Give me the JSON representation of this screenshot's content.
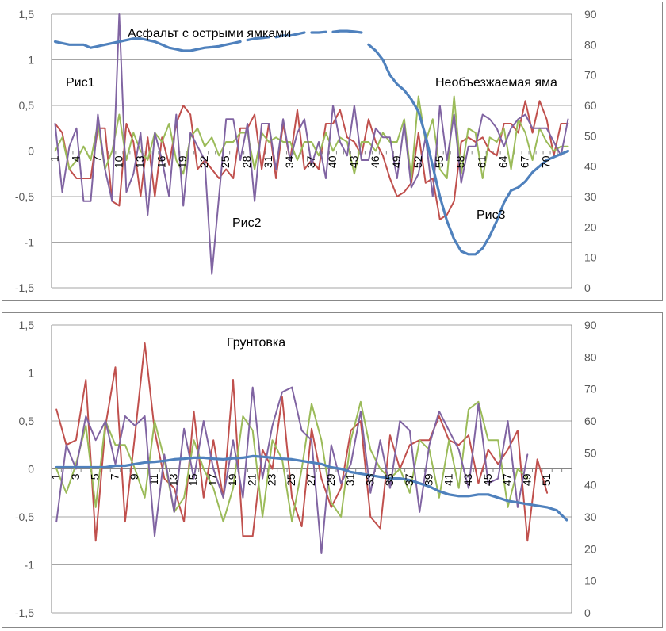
{
  "charts": {
    "top": {
      "type": "line",
      "title": "",
      "annotations": [
        "Асфальт с острыми ямками",
        "Рис1",
        "Необъезжаемая яма",
        "Рис2",
        "Рис3"
      ],
      "y_left": {
        "min": -1.5,
        "max": 1.5,
        "ticks": [
          -1.5,
          -1,
          -0.5,
          0,
          0.5,
          1,
          1.5
        ],
        "labels": [
          "-1,5",
          "-1",
          "-0,5",
          "0",
          "0,5",
          "1",
          "1,5"
        ]
      },
      "y_right": {
        "min": 0,
        "max": 90,
        "ticks": [
          0,
          10,
          20,
          30,
          40,
          50,
          60,
          70,
          80,
          90
        ],
        "labels": [
          "0",
          "10",
          "20",
          "30",
          "40",
          "50",
          "60",
          "70",
          "80",
          "90"
        ]
      },
      "x_count": 73,
      "x_labels": [
        "1",
        "4",
        "7",
        "10",
        "13",
        "16",
        "19",
        "22",
        "25",
        "28",
        "31",
        "34",
        "37",
        "40",
        "43",
        "46",
        "49",
        "52",
        "55",
        "58",
        "61",
        "64",
        "67",
        "70"
      ],
      "x_label_step": 3,
      "grid": "horizontal",
      "series": [
        {
          "color": "#c0504d",
          "axis": "left",
          "values": [
            0.3,
            0.2,
            -0.2,
            -0.3,
            -0.3,
            -0.3,
            0.25,
            0.25,
            -0.55,
            -0.6,
            0.3,
            0.1,
            -0.5,
            0.15,
            -0.5,
            0.15,
            -0.15,
            0.3,
            0.5,
            0.4,
            -0.2,
            -0.1,
            -0.2,
            -0.3,
            -0.2,
            -0.3,
            0.25,
            0.25,
            0.4,
            -0.2,
            0.3,
            -0.3,
            0.3,
            -0.1,
            0.45,
            -0.2,
            -0.1,
            -0.2,
            0.3,
            0.3,
            0.45,
            0.15,
            0.1,
            -0.05,
            0.35,
            0.1,
            -0.05,
            -0.3,
            -0.5,
            -0.45,
            -0.35,
            0.2,
            -0.35,
            -0.3,
            -0.75,
            -0.7,
            -0.55,
            0.1,
            0.15,
            0.1,
            0.15,
            0.0,
            -0.05,
            0.3,
            0.3,
            0.2,
            0.55,
            0.2,
            0.55,
            0.35,
            -0.05,
            0.3,
            0.3
          ]
        },
        {
          "color": "#9bbb59",
          "axis": "left",
          "values": [
            0.0,
            0.15,
            -0.2,
            -0.1,
            0.05,
            -0.1,
            0.3,
            -0.2,
            0.0,
            0.4,
            -0.1,
            0.2,
            0.0,
            -0.1,
            0.2,
            0.1,
            0.3,
            -0.1,
            -0.25,
            0.15,
            0.25,
            0.05,
            0.15,
            -0.05,
            0.1,
            0.1,
            0.2,
            0.2,
            -0.2,
            0.2,
            0.1,
            0.15,
            0.1,
            0.1,
            -0.1,
            0.1,
            0.1,
            -0.05,
            0.2,
            0.0,
            0.15,
            0.1,
            -0.25,
            0.1,
            0.1,
            0.0,
            0.2,
            0.1,
            0.1,
            0.35,
            -0.3,
            0.6,
            0.1,
            0.35,
            -0.2,
            -0.3,
            0.6,
            -0.25,
            0.25,
            0.2,
            -0.3,
            0.15,
            0.1,
            0.25,
            -0.2,
            0.35,
            0.2,
            -0.1,
            0.25,
            0.1,
            0.0,
            0.05,
            0.05
          ]
        },
        {
          "color": "#8064a2",
          "axis": "left",
          "values": [
            0.3,
            -0.45,
            0.05,
            0.25,
            -0.55,
            -0.55,
            0.4,
            -0.2,
            -0.55,
            1.5,
            -0.45,
            -0.25,
            0.2,
            -0.7,
            0.2,
            -0.1,
            -0.5,
            0.4,
            -0.6,
            0.2,
            0.05,
            -0.1,
            -1.35,
            -0.5,
            0.35,
            0.35,
            -0.1,
            0.3,
            -0.55,
            0.3,
            0.3,
            -0.2,
            0.35,
            -0.1,
            0.2,
            0.35,
            -0.15,
            0.1,
            -0.3,
            0.5,
            0.1,
            -0.05,
            0.5,
            -0.1,
            -0.1,
            0.25,
            0.15,
            0.15,
            -0.3,
            0.3,
            -0.4,
            -0.25,
            0.15,
            -0.5,
            0.5,
            -0.1,
            0.4,
            -0.35,
            0.05,
            0.05,
            0.4,
            0.35,
            0.25,
            0.05,
            0.25,
            0.35,
            0.4,
            0.25,
            0.25,
            0.25,
            0.1,
            -0.05,
            0.35
          ]
        },
        {
          "color": "#4f81bd",
          "axis": "right",
          "thick": true,
          "gaps": [
            [
              26,
              27
            ],
            [
              30,
              31
            ],
            [
              35,
              36
            ],
            [
              38,
              39
            ],
            [
              43,
              44
            ]
          ],
          "values": [
            81,
            80.5,
            80,
            80,
            80,
            79,
            79.5,
            80,
            80.5,
            81,
            81.5,
            82,
            82,
            81.5,
            81,
            80,
            79,
            78.5,
            78,
            78,
            78.5,
            79,
            79.2,
            79.5,
            80,
            80.5,
            81,
            81.5,
            82,
            82.2,
            82.5,
            82.5,
            83,
            83,
            83.5,
            84,
            84,
            84,
            84.2,
            84.2,
            84.5,
            84.5,
            84.3,
            84,
            80,
            78,
            75,
            70,
            67,
            65,
            62,
            58,
            50,
            40,
            30,
            22,
            16,
            12,
            11,
            11,
            13,
            17,
            22,
            28,
            32,
            33,
            35,
            38,
            40,
            42,
            43,
            44,
            45
          ]
        }
      ]
    },
    "bottom": {
      "type": "line",
      "title": "",
      "annotations": [
        "Грунтовка"
      ],
      "y_left": {
        "min": -1.5,
        "max": 1.5,
        "ticks": [
          -1.5,
          -1,
          -0.5,
          0,
          0.5,
          1,
          1.5
        ],
        "labels": [
          "-1,5",
          "-1",
          "-0,5",
          "0",
          "0,5",
          "1",
          "1,5"
        ]
      },
      "y_right": {
        "min": 0,
        "max": 90,
        "ticks": [
          0,
          10,
          20,
          30,
          40,
          50,
          60,
          70,
          80,
          90
        ],
        "labels": [
          "0",
          "10",
          "20",
          "30",
          "40",
          "50",
          "60",
          "70",
          "80",
          "90"
        ]
      },
      "x_count": 53,
      "x_labels": [
        "1",
        "3",
        "5",
        "7",
        "9",
        "11",
        "13",
        "15",
        "17",
        "19",
        "21",
        "23",
        "25",
        "27",
        "29",
        "31",
        "33",
        "35",
        "37",
        "39",
        "41",
        "43",
        "45",
        "47",
        "49",
        "51"
      ],
      "x_label_step": 2,
      "grid": "horizontal",
      "series": [
        {
          "color": "#c0504d",
          "axis": "left",
          "values": [
            0.62,
            0.25,
            0.3,
            0.93,
            -0.75,
            0.45,
            1.06,
            -0.55,
            0.35,
            1.31,
            0.4,
            -0.1,
            -0.2,
            -0.55,
            0.6,
            -0.3,
            0.3,
            -0.3,
            0.93,
            -0.7,
            -0.7,
            0.2,
            0.0,
            0.75,
            -0.3,
            -0.6,
            0.42,
            -0.1,
            -0.4,
            -0.2,
            0.4,
            0.5,
            -0.5,
            -0.62,
            0.35,
            0.0,
            0.25,
            0.3,
            0.3,
            0.55,
            0.3,
            0.25,
            0.35,
            -0.15,
            0.2,
            0.05,
            0.2,
            0.4,
            -0.75,
            0.1,
            -0.25
          ]
        },
        {
          "color": "#9bbb59",
          "axis": "left",
          "values": [
            0.0,
            -0.25,
            0.05,
            0.45,
            -0.4,
            0.5,
            0.25,
            0.25,
            0.0,
            -0.3,
            0.5,
            0.1,
            -0.45,
            -0.3,
            0.3,
            0.0,
            -0.2,
            -0.55,
            -0.2,
            0.55,
            0.4,
            -0.5,
            0.3,
            0.1,
            -0.55,
            0.0,
            0.68,
            0.3,
            -0.35,
            -0.5,
            0.3,
            0.7,
            0.2,
            0.0,
            -0.1,
            0.0,
            -0.25,
            0.3,
            0.2,
            -0.3,
            0.3,
            -0.2,
            0.62,
            0.7,
            0.3,
            0.3,
            -0.4,
            0.0,
            -0.1
          ]
        },
        {
          "color": "#8064a2",
          "axis": "left",
          "values": [
            -0.55,
            0.25,
            0.0,
            0.55,
            0.3,
            0.5,
            0.05,
            0.55,
            0.45,
            0.55,
            -0.7,
            0.15,
            -0.45,
            0.42,
            -0.1,
            0.5,
            0.0,
            -0.3,
            0.3,
            -0.3,
            0.85,
            -0.1,
            0.45,
            0.8,
            0.85,
            0.4,
            0.3,
            -0.88,
            0.25,
            -0.15,
            0.05,
            0.6,
            -0.25,
            0.3,
            -0.2,
            0.5,
            0.4,
            -0.45,
            0.25,
            0.6,
            0.4,
            0.2,
            -0.2,
            0.68,
            -0.15,
            -0.1,
            0.5,
            -0.4,
            0.15
          ]
        },
        {
          "color": "#4f81bd",
          "axis": "right",
          "thick": true,
          "values": [
            45.5,
            45.5,
            45.5,
            45.5,
            45.5,
            45.5,
            46,
            46,
            46.5,
            47,
            47.2,
            47.5,
            48,
            48.2,
            48.5,
            48.5,
            48.2,
            48,
            48.3,
            48.5,
            49,
            48.8,
            48.5,
            48.2,
            48,
            47.5,
            47,
            46.5,
            45.5,
            45,
            44,
            43.5,
            43,
            42.5,
            42,
            42,
            41.5,
            40.5,
            39.5,
            38,
            37,
            36.5,
            36.5,
            37,
            37,
            36,
            35,
            34.5,
            34,
            33.5,
            33,
            32,
            29
          ]
        }
      ]
    }
  }
}
